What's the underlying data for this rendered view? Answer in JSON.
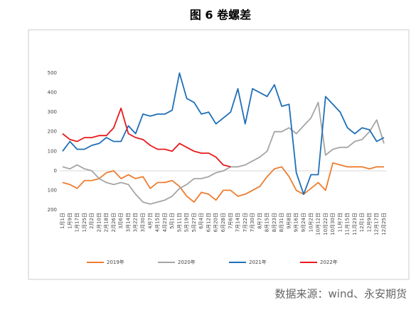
{
  "chart_data": {
    "type": "line",
    "title": "图 6 卷螺差",
    "source": "数据来源：wind、永安期货",
    "categories": [
      "1月1日",
      "1月9日",
      "1月17日",
      "1月25日",
      "2月2日",
      "2月10日",
      "2月18日",
      "2月26日",
      "3月6日",
      "3月14日",
      "3月22日",
      "3月30日",
      "4月7日",
      "4月15日",
      "4月23日",
      "5月1日",
      "5月11日",
      "5月19日",
      "5月27日",
      "6月4日",
      "6月12日",
      "6月20日",
      "6月28日",
      "7月6日",
      "7月14日",
      "7月22日",
      "7月30日",
      "8月7日",
      "8月15日",
      "8月23日",
      "8月31日",
      "9月8日",
      "9月16日",
      "9月24日",
      "10月2日",
      "10月12日",
      "10月22日",
      "10月30日",
      "11月7日",
      "11月15日",
      "11月23日",
      "12月1日",
      "12月9日",
      "12月17日",
      "12月25日"
    ],
    "series": [
      {
        "name": "2019年",
        "color": "#ed7d31",
        "values": [
          -60,
          -70,
          -90,
          -50,
          -50,
          -40,
          -10,
          0,
          -40,
          -20,
          -40,
          -30,
          -90,
          -60,
          -60,
          -50,
          -80,
          -130,
          -160,
          -110,
          -120,
          -150,
          -100,
          -100,
          -130,
          -120,
          -100,
          -80,
          -30,
          10,
          20,
          -30,
          -100,
          -120,
          -90,
          -60,
          -100,
          40,
          30,
          20,
          20,
          20,
          10,
          20,
          20
        ]
      },
      {
        "name": "2020年",
        "color": "#a5a5a5",
        "values": [
          20,
          10,
          30,
          10,
          0,
          -40,
          -60,
          -70,
          -60,
          -70,
          -120,
          -160,
          -170,
          -160,
          -150,
          -130,
          -90,
          -70,
          -40,
          -40,
          -30,
          -10,
          0,
          20,
          20,
          30,
          50,
          70,
          100,
          200,
          200,
          220,
          190,
          230,
          270,
          350,
          80,
          110,
          120,
          120,
          150,
          160,
          200,
          260,
          140
        ]
      },
      {
        "name": "2021年",
        "color": "#1f6fb8",
        "values": [
          100,
          150,
          110,
          110,
          130,
          140,
          170,
          150,
          150,
          230,
          190,
          290,
          280,
          290,
          290,
          310,
          500,
          370,
          350,
          290,
          300,
          240,
          270,
          300,
          420,
          240,
          420,
          400,
          380,
          440,
          330,
          340,
          -10,
          -120,
          -20,
          -20,
          380,
          340,
          300,
          220,
          190,
          220,
          210,
          150,
          170
        ]
      },
      {
        "name": "2022年",
        "color": "#e8191d",
        "values": [
          190,
          160,
          150,
          170,
          170,
          180,
          180,
          220,
          320,
          190,
          170,
          160,
          130,
          110,
          110,
          100,
          140,
          120,
          100,
          90,
          90,
          70,
          30,
          20,
          null,
          null,
          null,
          null,
          null,
          null,
          null,
          null,
          null,
          null,
          null,
          null,
          null,
          null,
          null,
          null,
          null,
          null,
          null,
          null,
          null
        ]
      }
    ],
    "ylim": [
      -200,
      500
    ],
    "yticks": [
      {
        "value": -200,
        "label": "200"
      },
      {
        "value": -100,
        "label": "100"
      },
      0,
      100,
      200,
      300,
      400,
      500
    ],
    "grid": false
  }
}
